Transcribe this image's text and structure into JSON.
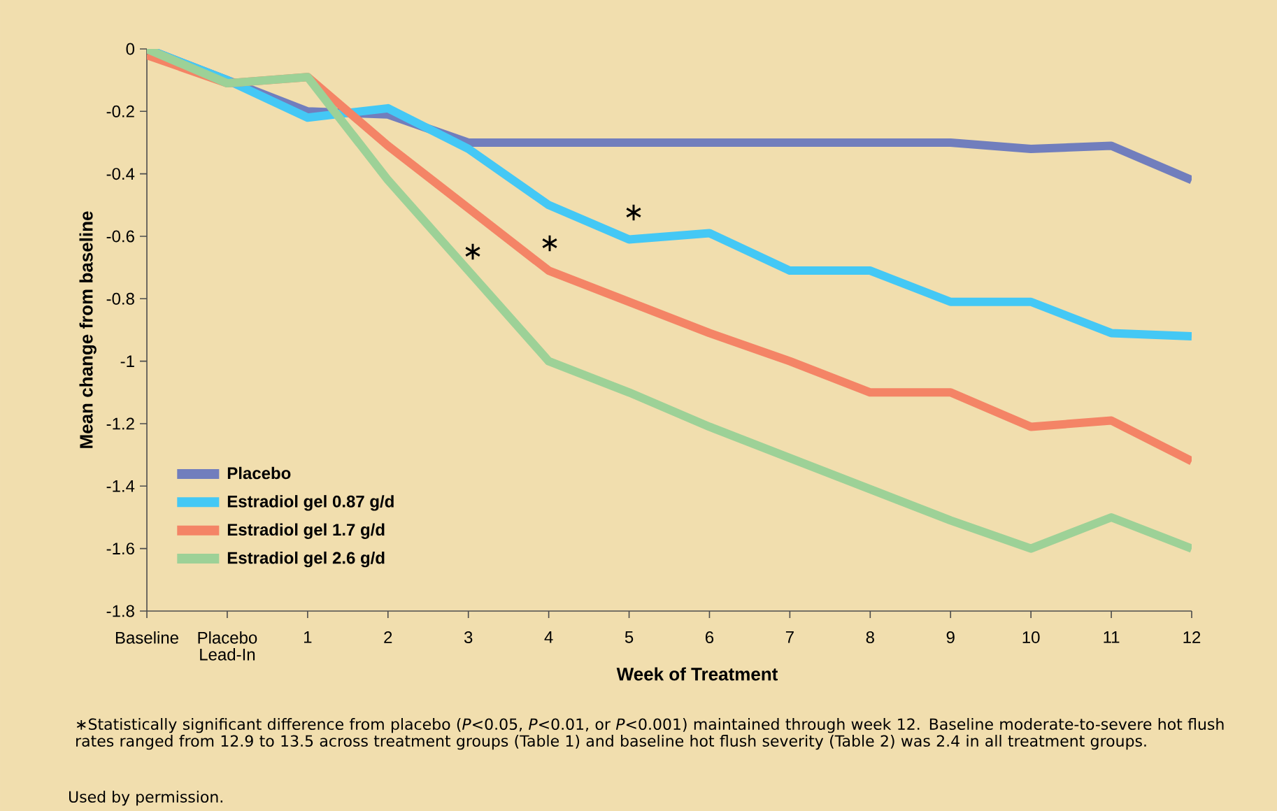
{
  "chart_data": {
    "type": "line",
    "xlabel": "Week of Treatment",
    "ylabel": "Mean change from baseline",
    "categories": [
      "Baseline",
      "Placebo Lead-In",
      "1",
      "2",
      "3",
      "4",
      "5",
      "6",
      "7",
      "8",
      "9",
      "10",
      "11",
      "12"
    ],
    "ylim": [
      -1.8,
      0
    ],
    "yticks": [
      0,
      -0.2,
      -0.4,
      -0.6,
      -0.8,
      -1,
      -1.2,
      -1.4,
      -1.6,
      -1.8
    ],
    "series": [
      {
        "name": "Placebo",
        "color": "#717ebd",
        "values": [
          0,
          -0.1,
          -0.2,
          -0.21,
          -0.3,
          -0.3,
          -0.3,
          -0.3,
          -0.3,
          -0.3,
          -0.3,
          -0.32,
          -0.31,
          -0.42
        ]
      },
      {
        "name": "Estradiol gel 0.87 g/d",
        "color": "#44c8f5",
        "values": [
          0,
          -0.1,
          -0.22,
          -0.19,
          -0.32,
          -0.5,
          -0.61,
          -0.59,
          -0.71,
          -0.71,
          -0.81,
          -0.81,
          -0.91,
          -0.92
        ]
      },
      {
        "name": "Estradiol gel 1.7 g/d",
        "color": "#f48466",
        "values": [
          -0.02,
          -0.11,
          -0.09,
          -0.31,
          -0.51,
          -0.71,
          -0.81,
          -0.91,
          -1.0,
          -1.1,
          -1.1,
          -1.21,
          -1.19,
          -1.32
        ]
      },
      {
        "name": "Estradiol gel 2.6 g/d",
        "color": "#9dd197",
        "values": [
          0,
          -0.11,
          -0.09,
          -0.42,
          -0.71,
          -1.0,
          -1.1,
          -1.21,
          -1.31,
          -1.41,
          -1.51,
          -1.6,
          -1.5,
          -1.6
        ]
      }
    ],
    "annotations": [
      "∗",
      "∗",
      "∗",
      "∗Statistically significant difference from placebo (*P*<0.05, *P*<0.01, or *P*<0.001) maintained through week 12. Baseline moderate-to-severe hot flush rates ranged from 12.9 to 13.5 across treatment groups (Table 1) and baseline hot flush severity (Table 2) was 2.4 in all treatment groups.",
      "Used by permission."
    ],
    "legend": "bottom left",
    "marker": "none",
    "line_style": "solid",
    "grid": false
  }
}
